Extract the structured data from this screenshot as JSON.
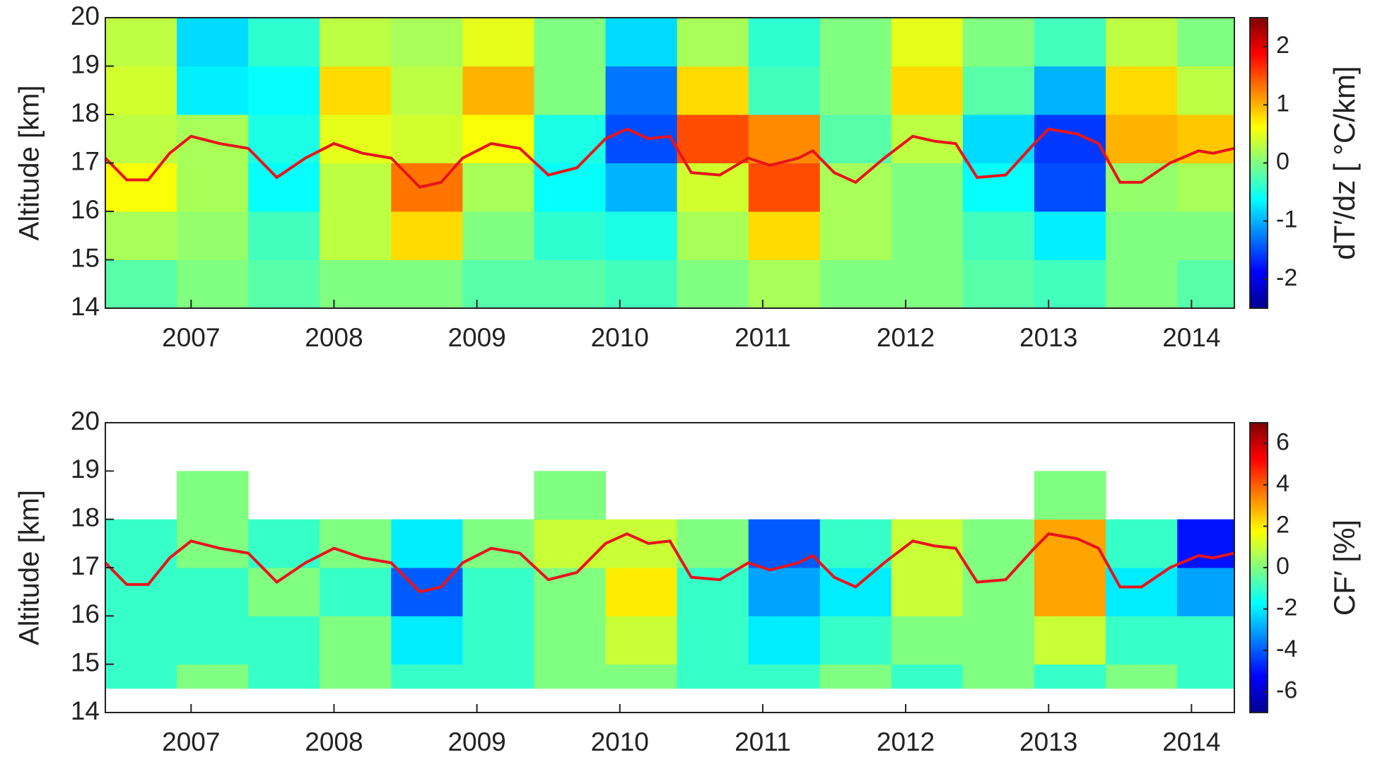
{
  "chart_data": [
    {
      "type": "heatmap-line",
      "ylabel": "Altitude [km]",
      "colorbar_label": "dT′/dz [ °C/km]",
      "colormap": "jet",
      "xlim": [
        2006.4,
        2014.3
      ],
      "xticks": [
        2007,
        2008,
        2009,
        2010,
        2011,
        2012,
        2013,
        2014
      ],
      "ylim": [
        14,
        20
      ],
      "yticks": [
        14,
        15,
        16,
        17,
        18,
        19,
        20
      ],
      "clim": [
        -2.5,
        2.5
      ],
      "cticks": [
        -2,
        -1,
        0,
        1,
        2
      ],
      "x_edges": [
        2006.4,
        2006.9,
        2007.4,
        2007.9,
        2008.4,
        2008.9,
        2009.4,
        2009.9,
        2010.4,
        2010.9,
        2011.4,
        2011.9,
        2012.4,
        2012.9,
        2013.4,
        2013.9,
        2014.3
      ],
      "y_edges": [
        14,
        15,
        16,
        17,
        18,
        19,
        20
      ],
      "z": [
        [
          -0.2,
          0,
          -0.2,
          0,
          0,
          -0.2,
          -0.2,
          -0.3,
          0,
          0.2,
          0,
          0,
          -0.2,
          -0.3,
          0,
          -0.2
        ],
        [
          0.2,
          0.1,
          -0.3,
          0.3,
          0.8,
          0,
          -0.4,
          -0.5,
          0.2,
          0.8,
          0.2,
          0,
          -0.3,
          -0.7,
          0,
          0
        ],
        [
          0.6,
          0.2,
          -0.6,
          0.3,
          1.3,
          0.2,
          -0.6,
          -1.0,
          0.4,
          1.5,
          0.2,
          0,
          -0.6,
          -1.5,
          0.1,
          0.2
        ],
        [
          0.3,
          0.2,
          -0.5,
          0.5,
          0.4,
          0.6,
          -0.5,
          -1.5,
          1.5,
          1.2,
          -0.2,
          0.3,
          -0.8,
          -1.6,
          1.0,
          0.9
        ],
        [
          0.4,
          -0.7,
          -0.6,
          0.8,
          0.3,
          1.0,
          0,
          -1.3,
          0.8,
          -0.3,
          0,
          0.8,
          -0.2,
          -1.0,
          0.8,
          0.3
        ],
        [
          0.3,
          -0.8,
          -0.4,
          0.3,
          0.2,
          0.5,
          0,
          -0.8,
          0.2,
          -0.4,
          0,
          0.5,
          0,
          -0.3,
          0.3,
          0
        ]
      ],
      "line": {
        "color": "#e8141c",
        "x": [
          2006.4,
          2006.55,
          2006.7,
          2006.85,
          2007.0,
          2007.2,
          2007.4,
          2007.6,
          2007.8,
          2008.0,
          2008.2,
          2008.4,
          2008.6,
          2008.75,
          2008.9,
          2009.1,
          2009.3,
          2009.5,
          2009.7,
          2009.9,
          2010.05,
          2010.2,
          2010.35,
          2010.5,
          2010.7,
          2010.9,
          2011.05,
          2011.25,
          2011.35,
          2011.5,
          2011.65,
          2011.85,
          2012.05,
          2012.2,
          2012.35,
          2012.5,
          2012.7,
          2012.9,
          2013.0,
          2013.2,
          2013.35,
          2013.5,
          2013.65,
          2013.85,
          2014.05,
          2014.15,
          2014.3
        ],
        "values": [
          17.1,
          16.65,
          16.65,
          17.2,
          17.55,
          17.4,
          17.3,
          16.7,
          17.1,
          17.4,
          17.2,
          17.1,
          16.5,
          16.6,
          17.1,
          17.4,
          17.3,
          16.75,
          16.9,
          17.5,
          17.7,
          17.5,
          17.55,
          16.8,
          16.75,
          17.1,
          16.95,
          17.1,
          17.25,
          16.8,
          16.6,
          17.1,
          17.55,
          17.45,
          17.4,
          16.7,
          16.75,
          17.4,
          17.7,
          17.6,
          17.4,
          16.6,
          16.6,
          17.0,
          17.25,
          17.2,
          17.3
        ]
      }
    },
    {
      "type": "heatmap-line",
      "ylabel": "Altitude [km]",
      "colorbar_label": "CF′ [%]",
      "colormap": "jet",
      "xlim": [
        2006.4,
        2014.3
      ],
      "xticks": [
        2007,
        2008,
        2009,
        2010,
        2011,
        2012,
        2013,
        2014
      ],
      "ylim": [
        14,
        20
      ],
      "yticks": [
        14,
        15,
        16,
        17,
        18,
        19,
        20
      ],
      "clim": [
        -7,
        7
      ],
      "cticks": [
        -6,
        -4,
        -2,
        0,
        2,
        4,
        6
      ],
      "x_edges": [
        2006.4,
        2006.9,
        2007.4,
        2007.9,
        2008.4,
        2008.9,
        2009.4,
        2009.9,
        2010.4,
        2010.9,
        2011.4,
        2011.9,
        2012.4,
        2012.9,
        2013.4,
        2013.9,
        2014.3
      ],
      "y_edges": [
        14.5,
        15,
        16,
        17,
        18,
        19,
        20
      ],
      "z": [
        [
          -1,
          0,
          -1,
          0,
          -1,
          -1,
          0,
          0,
          -1,
          -1,
          0,
          -1,
          0,
          -1,
          0,
          -1
        ],
        [
          -1,
          -1,
          -1,
          0,
          -2,
          -1,
          0,
          1,
          -1,
          -2,
          -1,
          0,
          0,
          1,
          -1,
          -1
        ],
        [
          -1,
          -1,
          0,
          -1,
          -4,
          -1,
          0,
          2,
          -1,
          -3,
          -2,
          1,
          0,
          3,
          -2,
          -3
        ],
        [
          -1,
          0,
          -1,
          0,
          -2,
          0,
          1,
          1,
          0,
          -4,
          -1,
          1,
          0,
          3,
          -1,
          -5
        ],
        [
          null,
          0,
          null,
          null,
          null,
          null,
          0,
          null,
          null,
          null,
          null,
          null,
          null,
          0,
          null,
          null
        ],
        [
          null,
          null,
          null,
          null,
          null,
          null,
          null,
          null,
          null,
          null,
          null,
          null,
          null,
          null,
          null,
          null
        ]
      ],
      "line": {
        "color": "#e8141c",
        "x": [
          2006.4,
          2006.55,
          2006.7,
          2006.85,
          2007.0,
          2007.2,
          2007.4,
          2007.6,
          2007.8,
          2008.0,
          2008.2,
          2008.4,
          2008.6,
          2008.75,
          2008.9,
          2009.1,
          2009.3,
          2009.5,
          2009.7,
          2009.9,
          2010.05,
          2010.2,
          2010.35,
          2010.5,
          2010.7,
          2010.9,
          2011.05,
          2011.25,
          2011.35,
          2011.5,
          2011.65,
          2011.85,
          2012.05,
          2012.2,
          2012.35,
          2012.5,
          2012.7,
          2012.9,
          2013.0,
          2013.2,
          2013.35,
          2013.5,
          2013.65,
          2013.85,
          2014.05,
          2014.15,
          2014.3
        ],
        "values": [
          17.1,
          16.65,
          16.65,
          17.2,
          17.55,
          17.4,
          17.3,
          16.7,
          17.1,
          17.4,
          17.2,
          17.1,
          16.5,
          16.6,
          17.1,
          17.4,
          17.3,
          16.75,
          16.9,
          17.5,
          17.7,
          17.5,
          17.55,
          16.8,
          16.75,
          17.1,
          16.95,
          17.1,
          17.25,
          16.8,
          16.6,
          17.1,
          17.55,
          17.45,
          17.4,
          16.7,
          16.75,
          17.4,
          17.7,
          17.6,
          17.4,
          16.6,
          16.6,
          17.0,
          17.25,
          17.2,
          17.3
        ]
      }
    }
  ]
}
